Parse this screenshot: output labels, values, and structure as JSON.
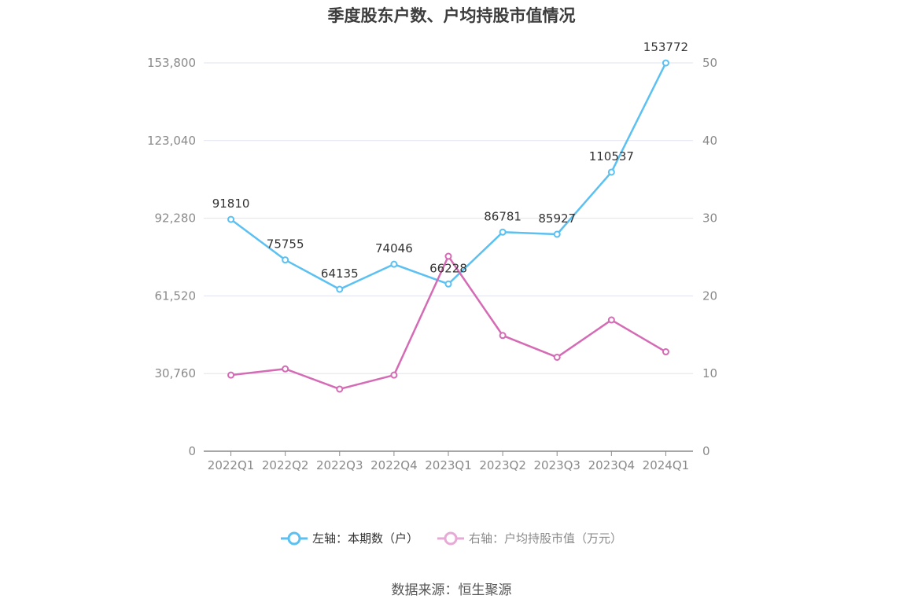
{
  "title": "季度股东户数、户均持股市值情况",
  "source": "数据来源：恒生聚源",
  "legend": {
    "left_label": "左轴：本期数（户）",
    "right_label": "右轴：户均持股市值（万元）"
  },
  "colors": {
    "left_series": "#5bc0f2",
    "right_series": "#d46bb4",
    "grid": "#dfe3ee",
    "axis": "#8a8a8a"
  },
  "chart_data": {
    "type": "line",
    "categories": [
      "2022Q1",
      "2022Q2",
      "2022Q3",
      "2022Q4",
      "2023Q1",
      "2023Q2",
      "2023Q3",
      "2023Q4",
      "2024Q1"
    ],
    "y_left_ticks": [
      "0",
      "30,760",
      "61,520",
      "92,280",
      "123,040",
      "153,800"
    ],
    "y_right_ticks": [
      "0",
      "10",
      "20",
      "30",
      "40",
      "50"
    ],
    "y_left_range": [
      0,
      153800
    ],
    "y_right_range": [
      0,
      50
    ],
    "grid": true,
    "legend_position": "bottom",
    "series": [
      {
        "name": "左轴：本期数（户）",
        "axis": "left",
        "values": [
          91810,
          75755,
          64135,
          74046,
          66228,
          86781,
          85927,
          110537,
          153772
        ],
        "labels": [
          "91810",
          "75755",
          "64135",
          "74046",
          "66228",
          "86781",
          "85927",
          "110537",
          "153772"
        ]
      },
      {
        "name": "右轴：户均持股市值（万元）",
        "axis": "right",
        "values": [
          9.8,
          10.6,
          8.0,
          9.8,
          25.1,
          14.9,
          12.1,
          16.9,
          12.8
        ]
      }
    ]
  }
}
